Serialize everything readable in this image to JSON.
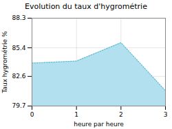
{
  "chart_data": {
    "type": "area",
    "title": "Evolution du taux d'hygrométrie",
    "xlabel": "heure par heure",
    "ylabel": "Taux hygrométrie %",
    "x": [
      0,
      1,
      2,
      3
    ],
    "values": [
      83.9,
      84.1,
      85.9,
      81.2
    ],
    "xlim": [
      0,
      3
    ],
    "ylim": [
      79.7,
      88.3
    ],
    "xticks": [
      0,
      1,
      2,
      3
    ],
    "yticks": [
      79.7,
      82.6,
      85.4,
      88.3
    ],
    "colors": [
      "#b3e0ef",
      "#5bbcd6"
    ],
    "line_style": "dotted",
    "grid": true
  }
}
